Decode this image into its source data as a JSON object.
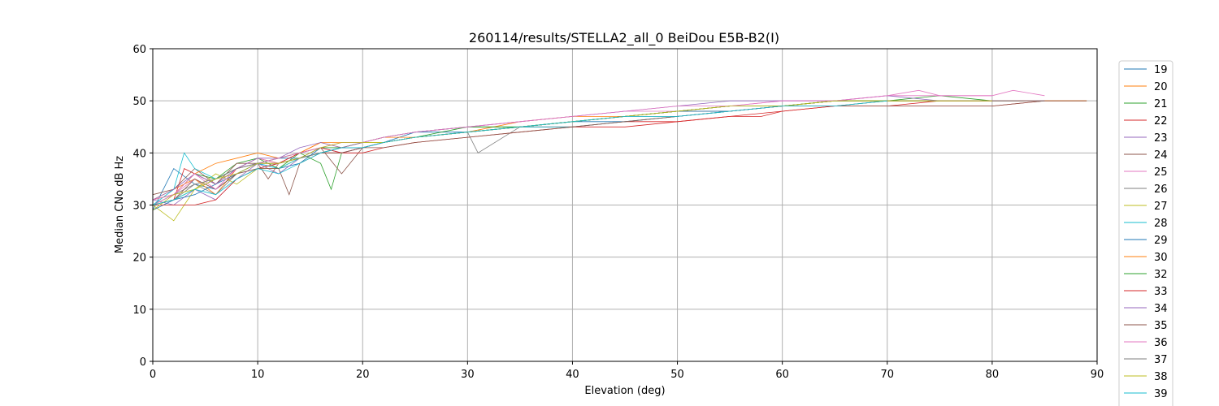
{
  "chart_data": {
    "type": "line",
    "title": "260114/results/STELLA2_all_0 BeiDou E5B-B2(I)",
    "xlabel": "Elevation (deg)",
    "ylabel": "Median CNo dB Hz",
    "xlim": [
      0,
      90
    ],
    "ylim": [
      0,
      60
    ],
    "xticks": [
      "0",
      "10",
      "20",
      "30",
      "40",
      "50",
      "60",
      "70",
      "80",
      "90"
    ],
    "yticks": [
      "0",
      "10",
      "20",
      "30",
      "40",
      "50",
      "60"
    ],
    "grid": true,
    "legend_position": "right",
    "series": [
      {
        "name": "19",
        "color": "#1f77b4",
        "x": [
          0,
          2,
          4,
          6,
          8,
          10,
          12,
          14,
          16,
          18,
          20,
          22,
          25,
          30,
          35,
          40,
          45,
          50,
          55,
          60,
          65,
          70,
          75
        ],
        "y": [
          29,
          37,
          34,
          33,
          36,
          38,
          37,
          38,
          41,
          41,
          41,
          42,
          44,
          44,
          45,
          46,
          46,
          47,
          48,
          49,
          50,
          50,
          50
        ]
      },
      {
        "name": "20",
        "color": "#ff7f0e",
        "x": [
          0,
          2,
          4,
          6,
          8,
          10,
          12,
          14,
          16,
          18,
          20,
          22,
          25,
          30,
          35,
          40,
          45,
          50,
          55,
          60,
          65,
          70,
          75,
          80,
          85,
          89
        ],
        "y": [
          31,
          33,
          35,
          32,
          37,
          39,
          38,
          40,
          42,
          41,
          42,
          42,
          43,
          44,
          45,
          46,
          47,
          48,
          49,
          49,
          50,
          50,
          50,
          50,
          50,
          50
        ]
      },
      {
        "name": "21",
        "color": "#2ca02c",
        "x": [
          0,
          2,
          4,
          6,
          8,
          10,
          12,
          14,
          16,
          17,
          18,
          20,
          22,
          25,
          30,
          35,
          40,
          45,
          50,
          55,
          60,
          65,
          70,
          75,
          80,
          83
        ],
        "y": [
          30,
          32,
          36,
          35,
          38,
          39,
          37,
          40,
          38,
          33,
          40,
          41,
          42,
          43,
          45,
          45,
          46,
          47,
          48,
          49,
          49,
          50,
          50,
          51,
          50,
          50
        ]
      },
      {
        "name": "22",
        "color": "#d62728",
        "x": [
          0,
          2,
          3,
          4,
          6,
          8,
          10,
          12,
          14,
          16,
          18,
          20,
          22,
          25,
          30,
          35,
          40,
          45,
          50,
          55,
          60,
          65,
          70,
          75,
          80,
          85
        ],
        "y": [
          30,
          31,
          37,
          36,
          34,
          37,
          38,
          38,
          39,
          40,
          40,
          41,
          42,
          43,
          44,
          45,
          45,
          46,
          46,
          47,
          48,
          49,
          49,
          50,
          50,
          50
        ]
      },
      {
        "name": "23",
        "color": "#9467bd",
        "x": [
          0,
          2,
          4,
          6,
          8,
          10,
          12,
          14,
          16,
          18,
          20,
          22,
          25,
          30,
          35,
          40,
          45,
          50,
          55,
          60,
          65,
          70,
          75,
          80
        ],
        "y": [
          31,
          30,
          33,
          31,
          35,
          38,
          36,
          39,
          41,
          40,
          41,
          42,
          43,
          44,
          45,
          46,
          47,
          48,
          49,
          49,
          50,
          50,
          50,
          50
        ]
      },
      {
        "name": "24",
        "color": "#8c564b",
        "x": [
          0,
          2,
          4,
          6,
          8,
          10,
          11,
          12,
          14,
          16,
          18,
          20,
          22,
          25,
          30,
          35,
          40,
          45,
          50,
          55,
          60,
          65,
          70,
          75,
          80
        ],
        "y": [
          32,
          33,
          37,
          34,
          38,
          38,
          35,
          38,
          39,
          41,
          36,
          41,
          42,
          43,
          44,
          45,
          46,
          47,
          48,
          48,
          49,
          49,
          50,
          50,
          50
        ]
      },
      {
        "name": "25",
        "color": "#e377c2",
        "x": [
          0,
          2,
          4,
          6,
          8,
          10,
          12,
          14,
          16,
          18,
          20,
          22,
          25,
          30,
          35,
          40,
          45,
          50,
          55,
          60,
          65,
          70,
          75,
          80
        ],
        "y": [
          30,
          32,
          35,
          33,
          37,
          39,
          38,
          40,
          41,
          42,
          42,
          43,
          44,
          45,
          46,
          47,
          48,
          48,
          49,
          50,
          50,
          51,
          51,
          51
        ]
      },
      {
        "name": "26",
        "color": "#7f7f7f",
        "x": [
          0,
          2,
          4,
          6,
          8,
          10,
          12,
          14,
          16,
          18,
          20,
          22,
          25,
          30,
          31,
          35,
          40,
          45,
          50,
          55,
          60,
          65,
          70
        ],
        "y": [
          31,
          32,
          34,
          32,
          36,
          37,
          38,
          39,
          40,
          41,
          41,
          42,
          43,
          44,
          40,
          45,
          46,
          47,
          48,
          49,
          49,
          50,
          50
        ]
      },
      {
        "name": "27",
        "color": "#bcbd22",
        "x": [
          0,
          2,
          4,
          6,
          8,
          10,
          12,
          14,
          16,
          18,
          20,
          22,
          25,
          30,
          35,
          40,
          45,
          50,
          55,
          60,
          65,
          70,
          75,
          80
        ],
        "y": [
          30,
          27,
          33,
          36,
          34,
          37,
          37,
          39,
          40,
          41,
          42,
          42,
          43,
          44,
          45,
          46,
          47,
          48,
          49,
          49,
          50,
          50,
          50,
          50
        ]
      },
      {
        "name": "28",
        "color": "#17becf",
        "x": [
          0,
          2,
          3,
          4,
          6,
          8,
          10,
          12,
          14,
          16,
          18,
          20,
          22,
          25,
          30,
          35,
          40,
          45,
          50,
          55,
          60,
          65
        ],
        "y": [
          30,
          33,
          40,
          37,
          35,
          37,
          38,
          37,
          39,
          40,
          41,
          41,
          42,
          43,
          44,
          45,
          45,
          46,
          47,
          48,
          49,
          49
        ]
      },
      {
        "name": "29",
        "color": "#1f77b4",
        "x": [
          0,
          2,
          4,
          6,
          8,
          10,
          12,
          14,
          16,
          18,
          20,
          22,
          25,
          30,
          35,
          40,
          45,
          50,
          55,
          60,
          65,
          70
        ],
        "y": [
          29,
          31,
          32,
          34,
          36,
          38,
          39,
          39,
          40,
          41,
          41,
          42,
          43,
          44,
          45,
          46,
          47,
          48,
          48,
          49,
          50,
          50
        ]
      },
      {
        "name": "30",
        "color": "#ff7f0e",
        "x": [
          0,
          2,
          4,
          6,
          8,
          10,
          12,
          14,
          16,
          18,
          20,
          22,
          25,
          30,
          35,
          40,
          45,
          50,
          55,
          60,
          65,
          70,
          75,
          80,
          85,
          89
        ],
        "y": [
          31,
          32,
          36,
          38,
          39,
          40,
          39,
          40,
          42,
          42,
          42,
          43,
          43,
          44,
          46,
          47,
          47,
          48,
          49,
          49,
          50,
          50,
          50,
          50,
          50,
          50
        ]
      },
      {
        "name": "32",
        "color": "#2ca02c",
        "x": [
          0,
          2,
          4,
          6,
          8,
          10,
          12,
          14,
          16,
          18,
          20,
          22,
          25,
          30,
          35,
          40,
          45,
          50,
          55,
          60,
          65,
          70,
          75
        ],
        "y": [
          30,
          31,
          33,
          35,
          37,
          38,
          39,
          40,
          41,
          41,
          42,
          43,
          44,
          45,
          45,
          46,
          47,
          48,
          49,
          49,
          50,
          50,
          50
        ]
      },
      {
        "name": "33",
        "color": "#d62728",
        "x": [
          0,
          2,
          4,
          6,
          8,
          10,
          12,
          14,
          16,
          18,
          20,
          22,
          25,
          30,
          35,
          40,
          45,
          50,
          55,
          58,
          60,
          65,
          70,
          75,
          80,
          85
        ],
        "y": [
          30,
          30,
          30,
          31,
          35,
          37,
          38,
          40,
          41,
          40,
          40,
          41,
          42,
          43,
          44,
          45,
          45,
          46,
          47,
          47,
          48,
          49,
          49,
          49,
          49,
          50
        ]
      },
      {
        "name": "34",
        "color": "#9467bd",
        "x": [
          0,
          2,
          4,
          6,
          8,
          10,
          12,
          14,
          16,
          18,
          20,
          22,
          25,
          30,
          35,
          40,
          45,
          50,
          55,
          60,
          65,
          70,
          75,
          80,
          85
        ],
        "y": [
          31,
          33,
          36,
          34,
          37,
          39,
          39,
          41,
          42,
          41,
          42,
          43,
          44,
          45,
          46,
          47,
          48,
          49,
          50,
          50,
          50,
          51,
          50,
          50,
          50
        ]
      },
      {
        "name": "35",
        "color": "#8c564b",
        "x": [
          0,
          2,
          4,
          6,
          8,
          10,
          12,
          13,
          14,
          16,
          18,
          20,
          22,
          25,
          30,
          35,
          40,
          45,
          50,
          55,
          60,
          65,
          70,
          75,
          80,
          85,
          89
        ],
        "y": [
          30,
          31,
          35,
          33,
          36,
          37,
          37,
          32,
          38,
          40,
          40,
          41,
          41,
          42,
          43,
          44,
          45,
          46,
          47,
          48,
          49,
          49,
          49,
          49,
          49,
          50,
          50
        ]
      },
      {
        "name": "36",
        "color": "#e377c2",
        "x": [
          0,
          2,
          4,
          6,
          8,
          10,
          12,
          14,
          16,
          18,
          20,
          22,
          25,
          30,
          35,
          40,
          45,
          50,
          55,
          60,
          65,
          70,
          73,
          75,
          80,
          82,
          85
        ],
        "y": [
          31,
          32,
          36,
          33,
          37,
          38,
          39,
          40,
          41,
          42,
          42,
          43,
          44,
          45,
          46,
          47,
          48,
          49,
          49,
          50,
          50,
          51,
          52,
          51,
          51,
          52,
          51
        ]
      },
      {
        "name": "37",
        "color": "#7f7f7f",
        "x": [
          0,
          2,
          4,
          6,
          8,
          10,
          12,
          14,
          16,
          18,
          20,
          22,
          25,
          30,
          35,
          40,
          45,
          50,
          55,
          60,
          65,
          70,
          75,
          80,
          85
        ],
        "y": [
          30,
          31,
          34,
          35,
          37,
          38,
          38,
          39,
          40,
          41,
          41,
          42,
          43,
          44,
          45,
          46,
          47,
          47,
          48,
          49,
          49,
          50,
          50,
          50,
          50
        ]
      },
      {
        "name": "38",
        "color": "#bcbd22",
        "x": [
          0,
          2,
          4,
          6,
          8,
          10,
          12,
          14,
          16,
          18,
          20,
          22,
          25,
          30,
          35,
          40,
          45,
          50,
          55,
          60,
          65,
          70,
          75,
          80
        ],
        "y": [
          29,
          32,
          33,
          35,
          36,
          38,
          38,
          39,
          41,
          42,
          42,
          42,
          43,
          44,
          45,
          46,
          47,
          48,
          49,
          49,
          50,
          50,
          50,
          50
        ]
      },
      {
        "name": "39",
        "color": "#17becf",
        "x": [
          0,
          2,
          4,
          6,
          8,
          10,
          12,
          14,
          16,
          18,
          20,
          22,
          25,
          30,
          35,
          40,
          45,
          50,
          55,
          60,
          65,
          70
        ],
        "y": [
          30,
          31,
          33,
          32,
          35,
          37,
          36,
          38,
          40,
          41,
          41,
          42,
          43,
          44,
          45,
          46,
          47,
          47,
          48,
          49,
          49,
          50
        ]
      }
    ]
  }
}
